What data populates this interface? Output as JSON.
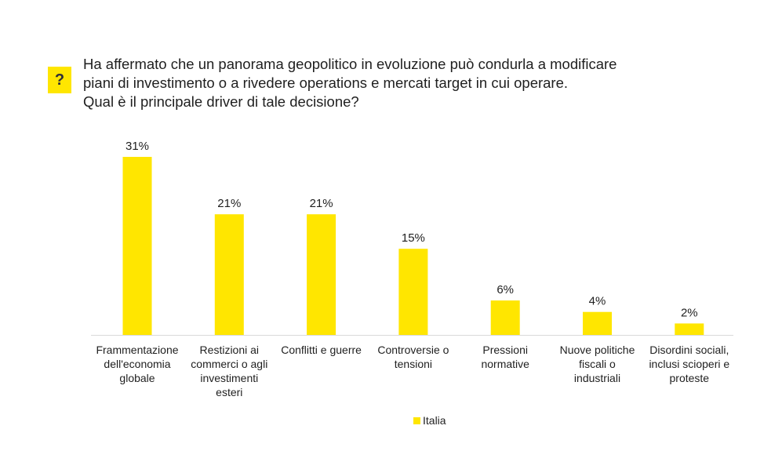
{
  "question": {
    "badge": "?",
    "lines": [
      "Ha affermato che un panorama geopolitico in evoluzione può condurla a modificare",
      "piani di investimento o a rivedere operations e mercati target in cui operare.",
      "Qual è il principale driver di tale decisione?"
    ]
  },
  "colors": {
    "bar": "#ffe600",
    "axis": "#d9d9d9",
    "text": "#1f1f1f"
  },
  "chart_data": {
    "type": "bar",
    "title": "Ha affermato che un panorama geopolitico in evoluzione può condurla a modificare piani di investimento o a rivedere operations e mercati target in cui operare. Qual è il principale driver di tale decisione?",
    "categories": [
      "Frammentazione dell'economia globale",
      "Restizioni ai commerci o agli investimenti esteri",
      "Conflitti e guerre",
      "Controversie o tensioni",
      "Pressioni normative",
      "Nuove politiche fiscali o industriali",
      "Disordini sociali, inclusi scioperi e proteste"
    ],
    "category_lines": [
      [
        "Frammentazione",
        "dell'economia",
        "globale"
      ],
      [
        "Restizioni ai",
        "commerci o agli",
        "investimenti",
        "esteri"
      ],
      [
        "Conflitti e guerre"
      ],
      [
        "Controversie o",
        "tensioni"
      ],
      [
        "Pressioni",
        "normative"
      ],
      [
        "Nuove politiche",
        "fiscali o",
        "industriali"
      ],
      [
        "Disordini sociali,",
        "inclusi scioperi e",
        "proteste"
      ]
    ],
    "series": [
      {
        "name": "Italia",
        "values": [
          31,
          21,
          21,
          15,
          6,
          4,
          2
        ]
      }
    ],
    "value_labels": [
      "31%",
      "21%",
      "21%",
      "15%",
      "6%",
      "4%",
      "2%"
    ],
    "ylim": [
      0,
      31
    ],
    "xlabel": "",
    "ylabel": "",
    "grid": false,
    "legend": {
      "position": "bottom",
      "entries": [
        "Italia"
      ]
    }
  }
}
